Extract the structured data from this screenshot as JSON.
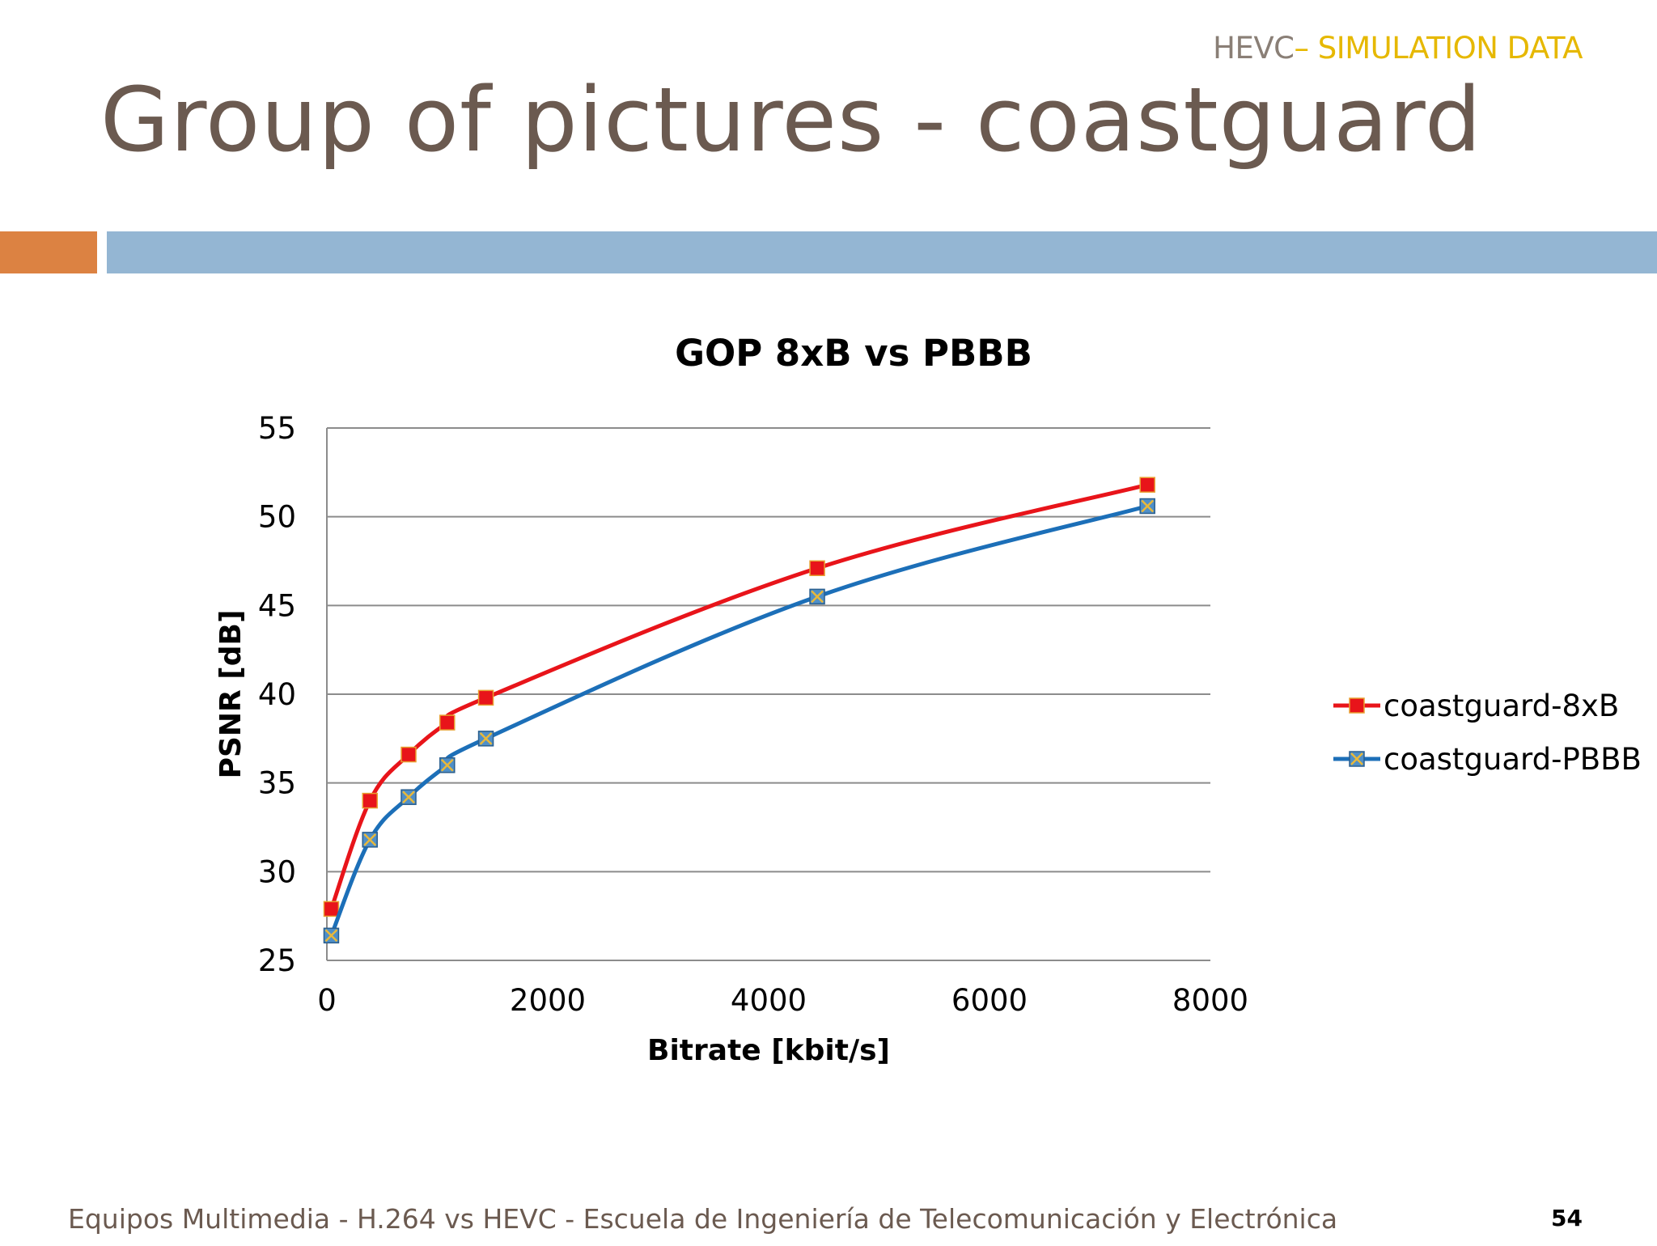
{
  "slide": {
    "header_prefix": "HEVC",
    "header_separator": "–",
    "header_section": " SIMULATION DATA",
    "title": "Group of pictures - coastguard",
    "footer": "Equipos Multimedia - H.264 vs HEVC - Escuela de Ingeniería de Telecomunicación y Electrónica",
    "page_number": "54",
    "colors": {
      "title": "#6b5a50",
      "accent_orange": "#dc8242",
      "accent_blue": "#94b6d3",
      "header_highlight": "#e6b800"
    }
  },
  "chart_data": {
    "type": "line",
    "title": "GOP 8xB vs PBBB",
    "xlabel": "Bitrate [kbit/s]",
    "ylabel": "PSNR [dB]",
    "xlim": [
      0,
      8000
    ],
    "ylim": [
      25,
      55
    ],
    "x_ticks": [
      0,
      2000,
      4000,
      6000,
      8000
    ],
    "y_ticks": [
      25,
      30,
      35,
      40,
      45,
      50,
      55
    ],
    "x_tick_labels": [
      "0",
      "2000",
      "4000",
      "6000",
      "8000"
    ],
    "y_tick_labels": [
      "25",
      "30",
      "35",
      "40",
      "45",
      "50",
      "55"
    ],
    "grid": "horizontal",
    "smooth": true,
    "legend_position": "right",
    "series": [
      {
        "name": "coastguard-8xB",
        "color": "#e8141a",
        "marker": "square",
        "points": [
          {
            "x": 40,
            "y": 27.9
          },
          {
            "x": 390,
            "y": 34.0
          },
          {
            "x": 740,
            "y": 36.6
          },
          {
            "x": 1090,
            "y": 38.4
          },
          {
            "x": 1440,
            "y": 39.8
          },
          {
            "x": 4440,
            "y": 47.1
          },
          {
            "x": 7430,
            "y": 51.8
          }
        ]
      },
      {
        "name": "coastguard-PBBB",
        "color": "#1c6fb8",
        "marker": "x-square",
        "points": [
          {
            "x": 40,
            "y": 26.4
          },
          {
            "x": 390,
            "y": 31.8
          },
          {
            "x": 740,
            "y": 34.2
          },
          {
            "x": 1090,
            "y": 36.0
          },
          {
            "x": 1440,
            "y": 37.5
          },
          {
            "x": 4440,
            "y": 45.5
          },
          {
            "x": 7430,
            "y": 50.6
          }
        ]
      }
    ]
  }
}
